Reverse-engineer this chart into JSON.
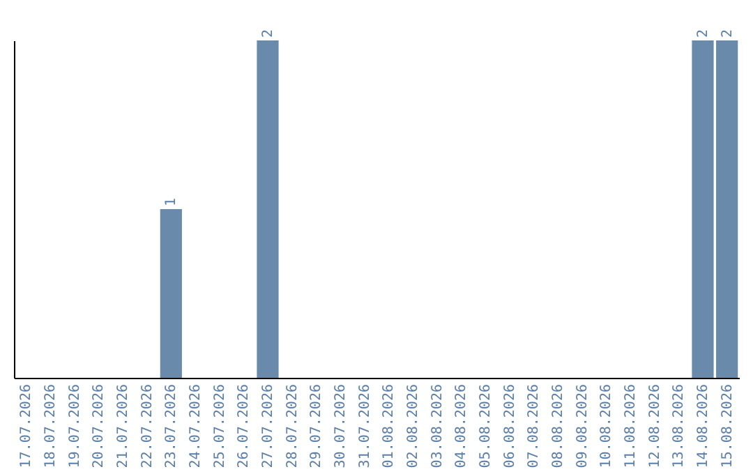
{
  "chart_data": {
    "type": "bar",
    "categories": [
      "17.07.2026",
      "18.07.2026",
      "19.07.2026",
      "20.07.2026",
      "21.07.2026",
      "22.07.2026",
      "23.07.2026",
      "24.07.2026",
      "25.07.2026",
      "26.07.2026",
      "27.07.2026",
      "28.07.2026",
      "29.07.2026",
      "30.07.2026",
      "31.07.2026",
      "01.08.2026",
      "02.08.2026",
      "03.08.2026",
      "04.08.2026",
      "05.08.2026",
      "06.08.2026",
      "07.08.2026",
      "08.08.2026",
      "09.08.2026",
      "10.08.2026",
      "11.08.2026",
      "12.08.2026",
      "13.08.2026",
      "14.08.2026",
      "15.08.2026"
    ],
    "values": [
      0,
      0,
      0,
      0,
      0,
      0,
      1,
      0,
      0,
      0,
      2,
      0,
      0,
      0,
      0,
      0,
      0,
      0,
      0,
      0,
      0,
      0,
      0,
      0,
      0,
      0,
      0,
      0,
      2,
      2
    ],
    "value_labels": [
      null,
      null,
      null,
      null,
      null,
      null,
      "1",
      null,
      null,
      null,
      "2",
      null,
      null,
      null,
      null,
      null,
      null,
      null,
      null,
      null,
      null,
      null,
      null,
      null,
      null,
      null,
      null,
      null,
      "2",
      "2"
    ],
    "color": "#6a8aab",
    "tick_labels": "x",
    "grid": false
  }
}
